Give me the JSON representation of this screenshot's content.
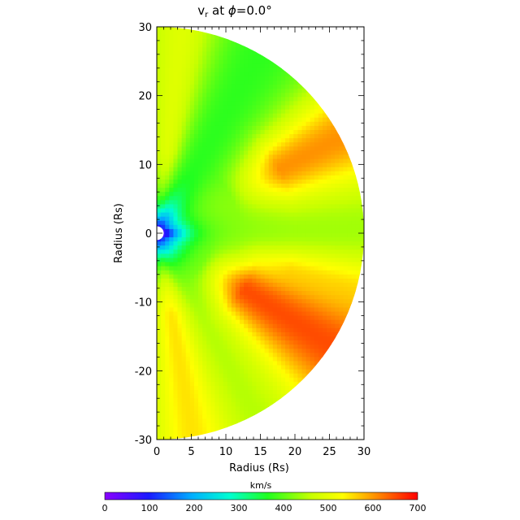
{
  "chart_data": {
    "type": "heatmap",
    "title": "v",
    "title_subscript": "r",
    "title_suffix": " at ",
    "title_phi": "ϕ",
    "title_angle": "=0.0°",
    "xlabel": "Radius (Rs)",
    "ylabel": "Radius (Rs)",
    "xlim": [
      0,
      30
    ],
    "ylim": [
      -30,
      30
    ],
    "x_ticks": [
      0,
      5,
      10,
      15,
      20,
      25,
      30
    ],
    "y_ticks": [
      -30,
      -20,
      -10,
      0,
      10,
      20,
      30
    ],
    "x_tick_labels": [
      "0",
      "5",
      "10",
      "15",
      "20",
      "25",
      "30"
    ],
    "y_tick_labels": [
      "-30",
      "-20",
      "-10",
      "0",
      "10",
      "20",
      "30"
    ],
    "domain": "half-disk, radius 30 Rs, inner boundary ~1 Rs",
    "colorbar": {
      "label": "km/s",
      "range": [
        0,
        700
      ],
      "ticks": [
        0,
        100,
        200,
        300,
        400,
        500,
        600,
        700
      ],
      "tick_labels": [
        "0",
        "100",
        "200",
        "300",
        "400",
        "500",
        "600",
        "700"
      ],
      "colormap": "rainbow (violet-blue-cyan-green-yellow-red)"
    },
    "field_description": "Radial solar-wind velocity slice: slow flow (<150 km/s) near the origin, ~400-500 km/s band along low latitudes, fast streams (~600-700 km/s) in upper right (lat ~20-40°) and lower right (lat ~-20 to -45°)"
  }
}
